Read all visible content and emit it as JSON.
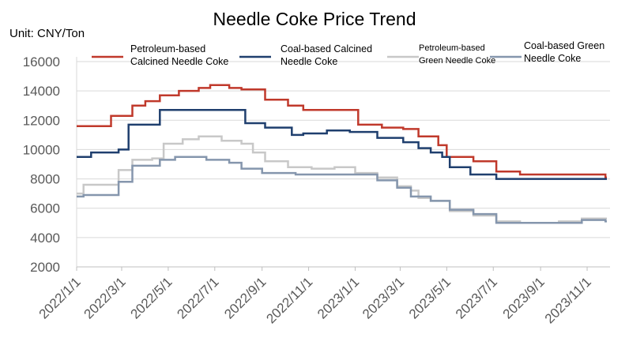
{
  "chart_data": {
    "type": "line",
    "title": "Needle Coke Price Trend",
    "unit_label": "Unit: CNY/Ton",
    "ylim": [
      2000,
      16000
    ],
    "yticks": [
      2000,
      4000,
      6000,
      8000,
      10000,
      12000,
      14000,
      16000
    ],
    "ytick_labels": [
      "2000",
      "4000",
      "6000",
      "8000",
      "10000",
      "12000",
      "14000",
      "16000"
    ],
    "xlim": [
      "2022-01-01",
      "2023-12-01"
    ],
    "xticks": [
      "2022-01-01",
      "2022-03-01",
      "2022-05-01",
      "2022-07-01",
      "2022-09-01",
      "2022-11-01",
      "2023-01-01",
      "2023-03-01",
      "2023-05-01",
      "2023-07-01",
      "2023-09-01",
      "2023-11-01"
    ],
    "xtick_labels": [
      "2022/1/1",
      "2022/3/1",
      "2022/5/1",
      "2022/7/1",
      "2022/9/1",
      "2022/11/1",
      "2023/1/1",
      "2023/3/1",
      "2023/5/1",
      "2023/7/1",
      "2023/9/1",
      "2023/11/1"
    ],
    "grid": "horizontal",
    "legend": "top",
    "series": [
      {
        "name": "Petroleum-based Calcined Needle Coke",
        "legend_lines": [
          "Petroleum-based",
          "Calcined Needle Coke"
        ],
        "color": "#c0392b",
        "style": "step",
        "points": [
          [
            "2022-01-01",
            11600
          ],
          [
            "2022-02-15",
            12300
          ],
          [
            "2022-03-15",
            13000
          ],
          [
            "2022-04-01",
            13300
          ],
          [
            "2022-04-20",
            13700
          ],
          [
            "2022-05-15",
            14000
          ],
          [
            "2022-06-10",
            14200
          ],
          [
            "2022-06-25",
            14400
          ],
          [
            "2022-07-20",
            14200
          ],
          [
            "2022-08-05",
            14100
          ],
          [
            "2022-09-05",
            13400
          ],
          [
            "2022-10-05",
            13000
          ],
          [
            "2022-10-25",
            12700
          ],
          [
            "2023-01-05",
            11700
          ],
          [
            "2023-02-05",
            11500
          ],
          [
            "2023-03-05",
            11400
          ],
          [
            "2023-03-25",
            10900
          ],
          [
            "2023-04-20",
            10300
          ],
          [
            "2023-05-01",
            9500
          ],
          [
            "2023-06-05",
            9200
          ],
          [
            "2023-07-05",
            8500
          ],
          [
            "2023-08-05",
            8300
          ],
          [
            "2023-11-25",
            8100
          ]
        ]
      },
      {
        "name": "Coal-based Calcined Needle Coke",
        "legend_lines": [
          "Coal-based Calcined",
          "Needle Coke"
        ],
        "color": "#1f3f6e",
        "style": "step",
        "points": [
          [
            "2022-01-01",
            9500
          ],
          [
            "2022-01-20",
            9800
          ],
          [
            "2022-02-25",
            10000
          ],
          [
            "2022-03-10",
            11700
          ],
          [
            "2022-04-20",
            12700
          ],
          [
            "2022-08-10",
            11800
          ],
          [
            "2022-09-05",
            11500
          ],
          [
            "2022-10-10",
            11000
          ],
          [
            "2022-10-25",
            11100
          ],
          [
            "2022-11-25",
            11300
          ],
          [
            "2022-12-25",
            11200
          ],
          [
            "2023-01-30",
            10800
          ],
          [
            "2023-03-05",
            10500
          ],
          [
            "2023-03-25",
            10100
          ],
          [
            "2023-04-10",
            9800
          ],
          [
            "2023-04-25",
            9500
          ],
          [
            "2023-05-05",
            8800
          ],
          [
            "2023-06-01",
            8300
          ],
          [
            "2023-07-05",
            8000
          ],
          [
            "2023-11-25",
            8000
          ]
        ]
      },
      {
        "name": "Petroleum-based Green Needle Coke",
        "legend_lines": [
          "Petroleum-based",
          "Green Needle Coke"
        ],
        "color": "#c8c8c8",
        "style": "step",
        "points": [
          [
            "2022-01-01",
            7000
          ],
          [
            "2022-01-10",
            7600
          ],
          [
            "2022-02-25",
            8600
          ],
          [
            "2022-03-15",
            9300
          ],
          [
            "2022-04-10",
            9400
          ],
          [
            "2022-04-25",
            10400
          ],
          [
            "2022-05-20",
            10700
          ],
          [
            "2022-06-10",
            10900
          ],
          [
            "2022-07-10",
            10600
          ],
          [
            "2022-08-05",
            10400
          ],
          [
            "2022-08-20",
            9800
          ],
          [
            "2022-09-05",
            9200
          ],
          [
            "2022-10-05",
            8800
          ],
          [
            "2022-11-05",
            8700
          ],
          [
            "2022-12-05",
            8800
          ],
          [
            "2023-01-01",
            8400
          ],
          [
            "2023-01-30",
            8100
          ],
          [
            "2023-02-25",
            7500
          ],
          [
            "2023-03-15",
            7200
          ],
          [
            "2023-03-25",
            6700
          ],
          [
            "2023-04-10",
            6500
          ],
          [
            "2023-05-05",
            5800
          ],
          [
            "2023-06-05",
            5500
          ],
          [
            "2023-07-05",
            5100
          ],
          [
            "2023-08-05",
            5000
          ],
          [
            "2023-09-25",
            5100
          ],
          [
            "2023-10-25",
            5300
          ],
          [
            "2023-11-25",
            5300
          ]
        ]
      },
      {
        "name": "Coal-based Green Needle Coke",
        "legend_lines": [
          "Coal-based Green",
          "Needle Coke"
        ],
        "color": "#8596ad",
        "style": "step",
        "points": [
          [
            "2022-01-01",
            6800
          ],
          [
            "2022-01-10",
            6900
          ],
          [
            "2022-02-25",
            7800
          ],
          [
            "2022-03-15",
            8900
          ],
          [
            "2022-04-20",
            9300
          ],
          [
            "2022-05-10",
            9500
          ],
          [
            "2022-06-20",
            9300
          ],
          [
            "2022-07-20",
            9100
          ],
          [
            "2022-08-05",
            8700
          ],
          [
            "2022-09-01",
            8400
          ],
          [
            "2022-10-15",
            8300
          ],
          [
            "2023-01-01",
            8300
          ],
          [
            "2023-01-30",
            7900
          ],
          [
            "2023-02-25",
            7400
          ],
          [
            "2023-03-15",
            6800
          ],
          [
            "2023-04-10",
            6500
          ],
          [
            "2023-05-05",
            5900
          ],
          [
            "2023-06-05",
            5600
          ],
          [
            "2023-07-05",
            5000
          ],
          [
            "2023-10-25",
            5200
          ],
          [
            "2023-11-25",
            5100
          ]
        ]
      }
    ]
  }
}
